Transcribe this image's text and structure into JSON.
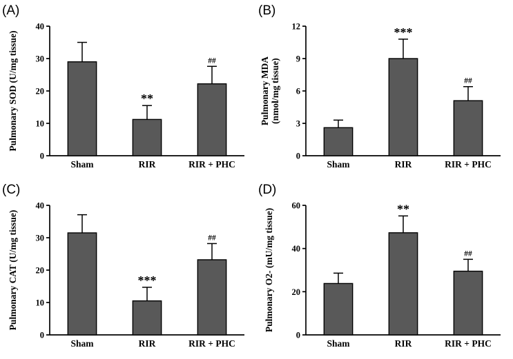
{
  "figure": {
    "background": "#ffffff",
    "bar_fill": "#595959",
    "bar_stroke": "#000000"
  },
  "chart_data": [
    {
      "type": "bar",
      "panel_label": "(A)",
      "ylabel_lines": [
        "Pulmonary SOD (U/mg tissue)"
      ],
      "xlabel": "",
      "categories": [
        "Sham",
        "RIR",
        "RIR + PHC"
      ],
      "values": [
        29,
        11.2,
        22.2
      ],
      "errors_up": [
        6,
        4.3,
        5.4
      ],
      "annotations": [
        "",
        "**",
        "##"
      ],
      "ylim": [
        0,
        40
      ],
      "yticks": [
        0,
        10,
        20,
        30,
        40
      ],
      "grid": false,
      "legend": false
    },
    {
      "type": "bar",
      "panel_label": "(B)",
      "ylabel_lines": [
        "Pulmonary MDA",
        "(nmol/mg tissue)"
      ],
      "xlabel": "",
      "categories": [
        "Sham",
        "RIR",
        "RIR + PHC"
      ],
      "values": [
        2.6,
        9.0,
        5.1
      ],
      "errors_up": [
        0.7,
        1.8,
        1.3
      ],
      "annotations": [
        "",
        "***",
        "##"
      ],
      "ylim": [
        0,
        12
      ],
      "yticks": [
        0,
        3,
        6,
        9,
        12
      ],
      "grid": false,
      "legend": false
    },
    {
      "type": "bar",
      "panel_label": "(C)",
      "ylabel_lines": [
        "Pulmonary CAT (U/mg tissue)"
      ],
      "xlabel": "",
      "categories": [
        "Sham",
        "RIR",
        "RIR + PHC"
      ],
      "values": [
        31.5,
        10.5,
        23.2
      ],
      "errors_up": [
        5.6,
        4.2,
        5.0
      ],
      "annotations": [
        "",
        "***",
        "##"
      ],
      "ylim": [
        0,
        40
      ],
      "yticks": [
        0,
        10,
        20,
        30,
        40
      ],
      "grid": false,
      "legend": false
    },
    {
      "type": "bar",
      "panel_label": "(D)",
      "ylabel_lines": [
        "Pulmonary O2- (mU/mg tissue)"
      ],
      "xlabel": "",
      "categories": [
        "Sham",
        "RIR",
        "RIR + PHC"
      ],
      "values": [
        23.8,
        47.3,
        29.5
      ],
      "errors_up": [
        4.8,
        7.8,
        5.5
      ],
      "annotations": [
        "",
        "**",
        "##"
      ],
      "ylim": [
        0,
        60
      ],
      "yticks": [
        0,
        20,
        40,
        60
      ],
      "grid": false,
      "legend": false
    }
  ]
}
